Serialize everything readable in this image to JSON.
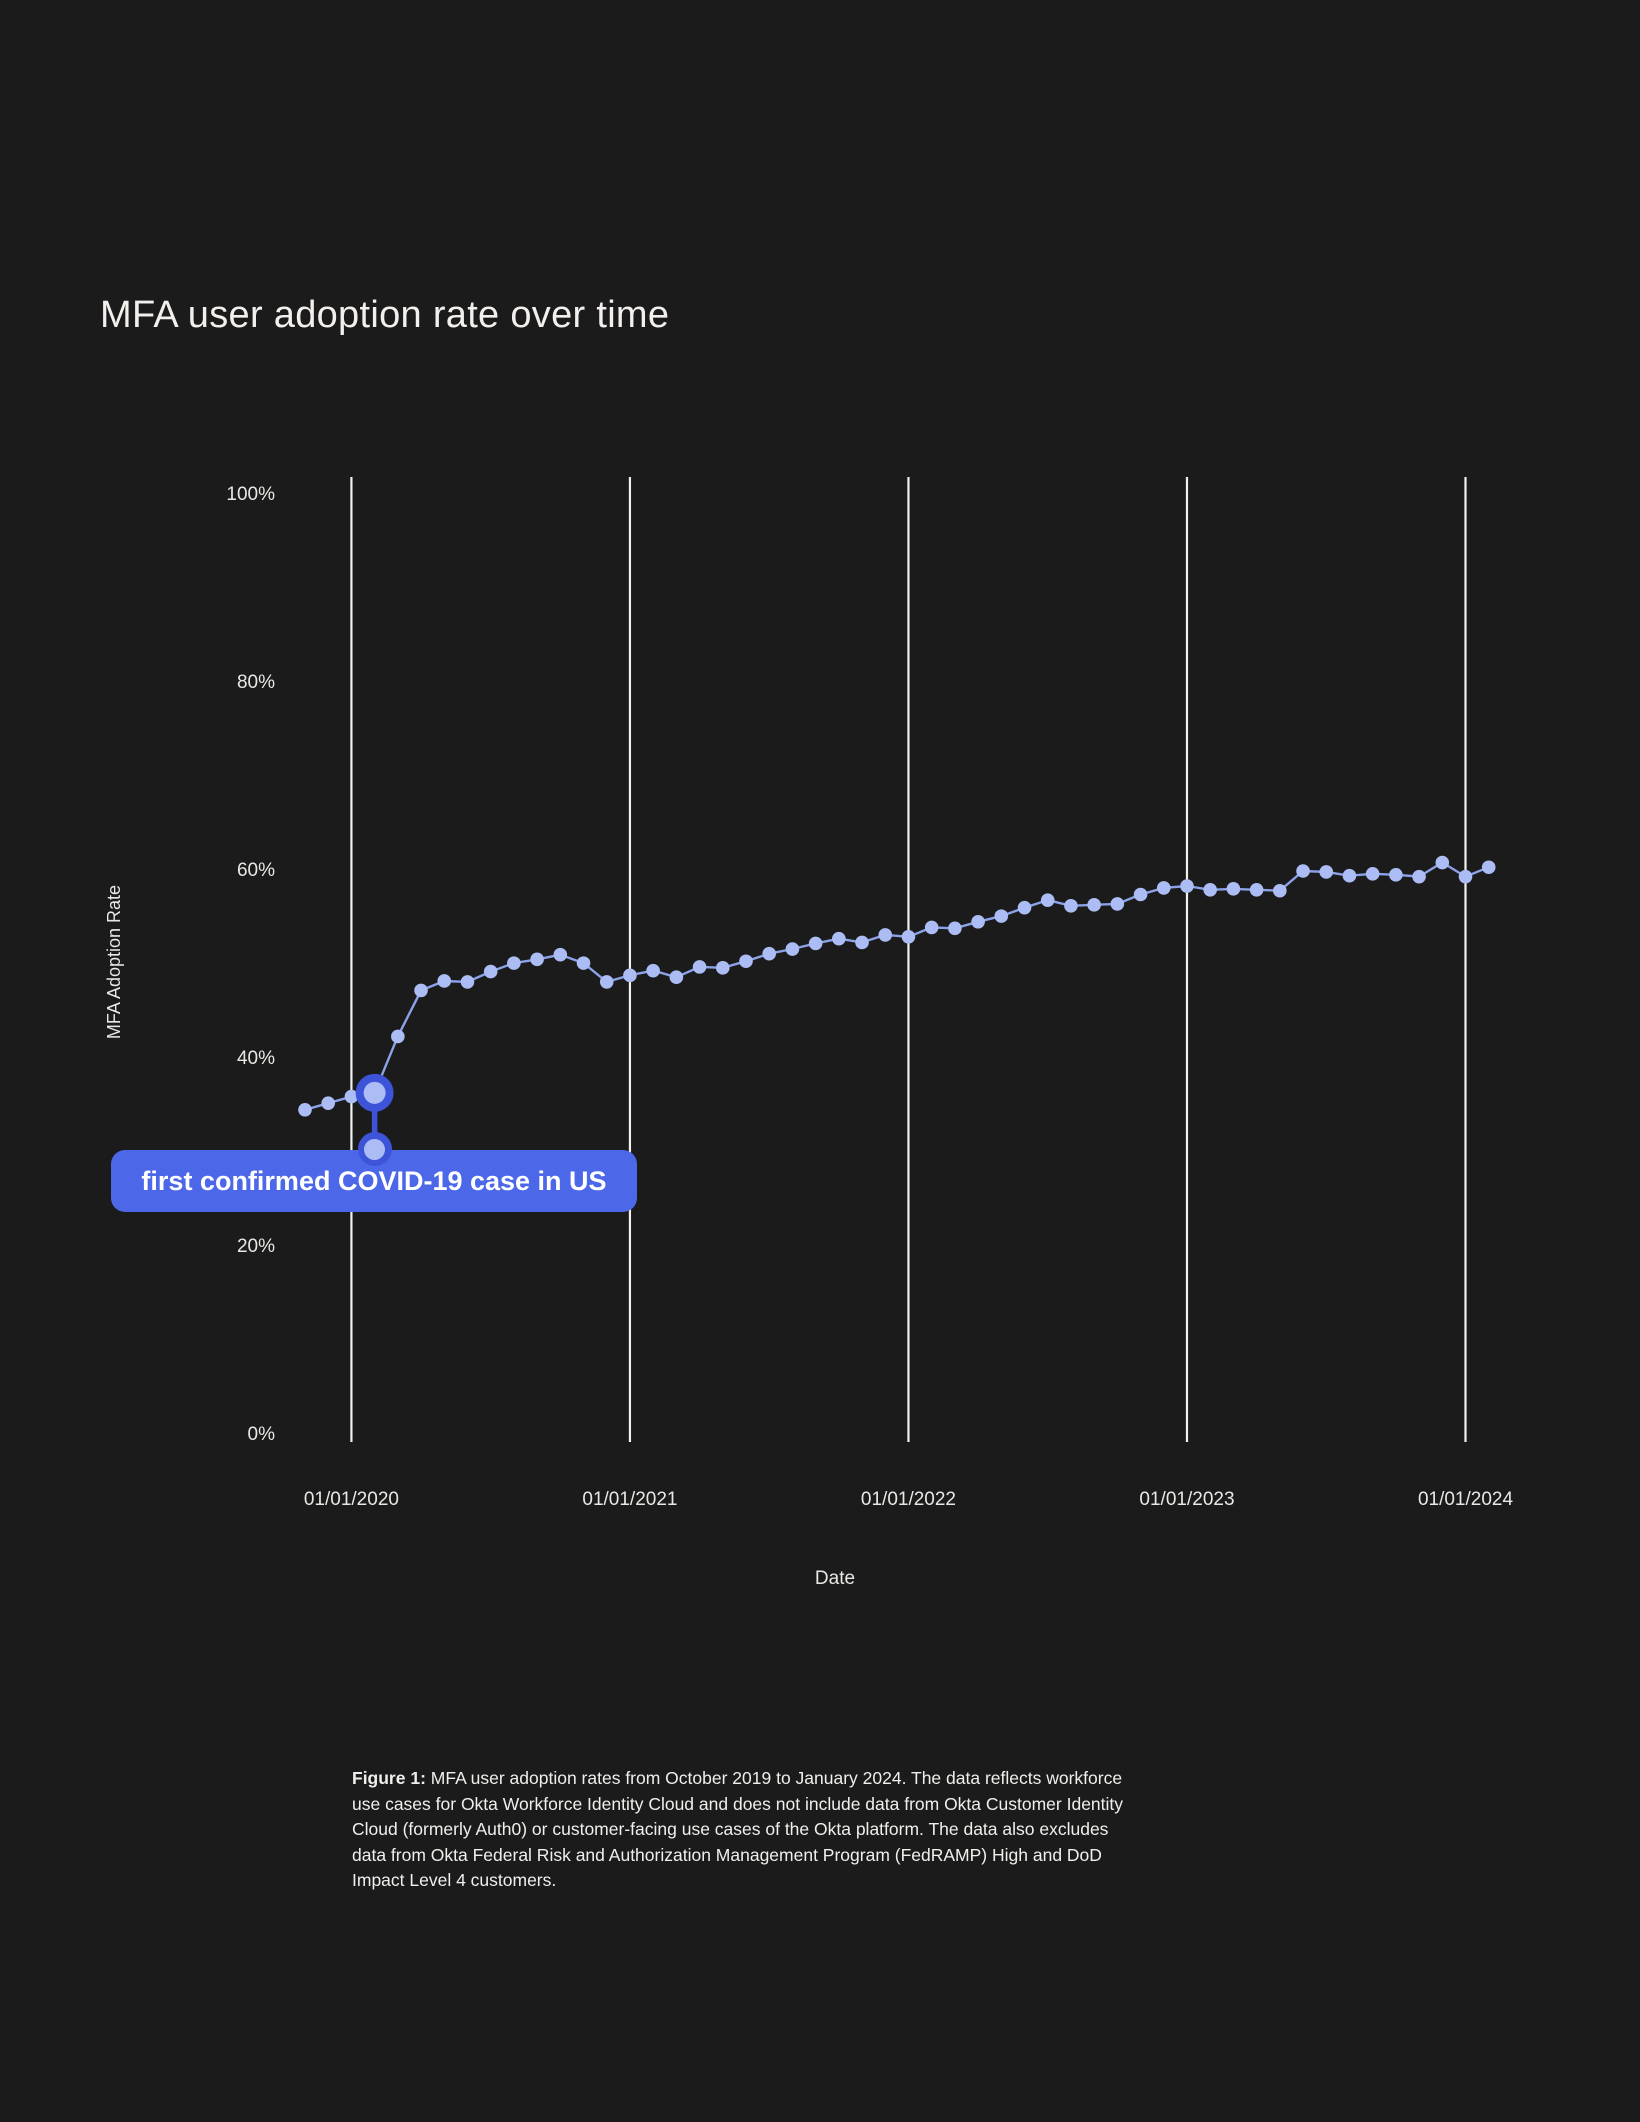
{
  "title": "MFA user adoption rate over time",
  "colors": {
    "background": "#1b1b1b",
    "text": "#f2efec",
    "tick_text": "#eae8e4",
    "gridline": "#f2f1ef",
    "line": "#8ba2e8",
    "dot": "#abbdf4",
    "accent_pill": "#4c68e8",
    "accent_dark": "#3e54d8"
  },
  "chart_data": {
    "type": "line",
    "title": "MFA user adoption rate over time",
    "xlabel": "Date",
    "ylabel": "MFA Adoption Rate",
    "ylim": [
      0,
      100
    ],
    "grid": "vertical-year-lines-only",
    "legend": "none",
    "y_ticks": [
      {
        "value": 100,
        "label": "100%"
      },
      {
        "value": 80,
        "label": "80%"
      },
      {
        "value": 60,
        "label": "60%"
      },
      {
        "value": 40,
        "label": "40%"
      },
      {
        "value": 20,
        "label": "20%"
      },
      {
        "value": 0,
        "label": "0%"
      }
    ],
    "x_tick_labels": [
      "01/01/2020",
      "01/01/2021",
      "01/01/2022",
      "01/01/2023",
      "01/01/2024"
    ],
    "series_name": "MFA user adoption rate (%)",
    "months": [
      "2019-10",
      "2019-11",
      "2019-12",
      "2020-01",
      "2020-02",
      "2020-03",
      "2020-04",
      "2020-05",
      "2020-06",
      "2020-07",
      "2020-08",
      "2020-09",
      "2020-10",
      "2020-11",
      "2020-12",
      "2021-01",
      "2021-02",
      "2021-03",
      "2021-04",
      "2021-05",
      "2021-06",
      "2021-07",
      "2021-08",
      "2021-09",
      "2021-10",
      "2021-11",
      "2021-12",
      "2022-01",
      "2022-02",
      "2022-03",
      "2022-04",
      "2022-05",
      "2022-06",
      "2022-07",
      "2022-08",
      "2022-09",
      "2022-10",
      "2022-11",
      "2022-12",
      "2023-01",
      "2023-02",
      "2023-03",
      "2023-04",
      "2023-05",
      "2023-06",
      "2023-07",
      "2023-08",
      "2023-09",
      "2023-10",
      "2023-11",
      "2023-12",
      "2024-01"
    ],
    "values": [
      34.6,
      35.3,
      36.0,
      36.4,
      42.4,
      47.3,
      48.3,
      48.2,
      49.3,
      50.2,
      50.6,
      51.1,
      50.2,
      48.2,
      48.9,
      49.4,
      48.7,
      49.8,
      49.7,
      50.4,
      51.2,
      51.7,
      52.3,
      52.8,
      52.4,
      53.2,
      53.0,
      54.0,
      53.9,
      54.6,
      55.2,
      56.1,
      56.9,
      56.3,
      56.4,
      56.5,
      57.5,
      58.2,
      58.4,
      58.0,
      58.1,
      58.0,
      57.9,
      60.0,
      59.9,
      59.5,
      59.7,
      59.6,
      59.4,
      60.9,
      59.4,
      60.4
    ]
  },
  "annotation": {
    "label": "first confirmed COVID-19 case in US",
    "month": "2020-01",
    "value": 36.4,
    "point_index": 3
  },
  "caption": {
    "label": "Figure 1:",
    "lines": [
      " MFA user adoption rates from October 2019 to January 2024. The data reflects workforce",
      "use cases for Okta Workforce Identity Cloud and does not include data from Okta Customer Identity",
      "Cloud (formerly Auth0) or customer-facing use cases of the Okta platform. The data also excludes",
      "data from Okta Federal Risk and Authorization Management Program (FedRAMP) High and DoD",
      "Impact Level 4 customers."
    ],
    "text": "MFA user adoption rates from October 2019 to January 2024. The data reflects workforce use cases for Okta Workforce Identity Cloud and does not include data from Okta Customer Identity Cloud (formerly Auth0) or customer-facing use cases of the Okta platform. The data also excludes data from Okta Federal Risk and Authorization Management Program (FedRAMP) High and DoD Impact Level 4 customers."
  }
}
